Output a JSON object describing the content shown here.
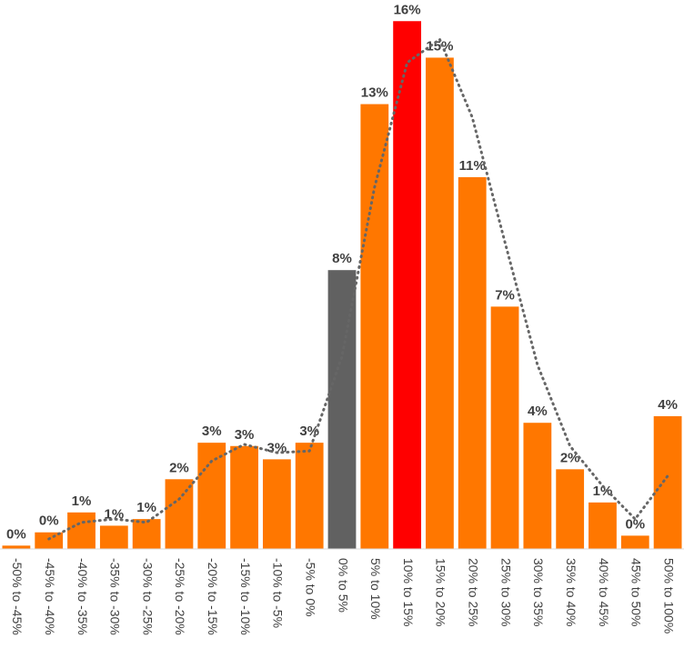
{
  "chart_data": {
    "type": "bar",
    "categories": [
      "-50% to -45%",
      "-45% to -40%",
      "-40% to -35%",
      "-35% to -30%",
      "-30% to -25%",
      "-25% to -20%",
      "-20% to -15%",
      "-15% to -10%",
      "-10% to -5%",
      "-5% to 0%",
      "0% to 5%",
      "5% to 10%",
      "10% to 15%",
      "15% to 20%",
      "20% to 25%",
      "25% to 30%",
      "30% to 35%",
      "35% to 40%",
      "40% to 45%",
      "45% to 50%",
      "50% to 100%"
    ],
    "values": [
      0.1,
      0.5,
      1.1,
      0.7,
      0.9,
      2.1,
      3.2,
      3.1,
      2.7,
      3.2,
      8.4,
      13.4,
      15.9,
      14.8,
      11.2,
      7.3,
      3.8,
      2.4,
      1.4,
      0.4,
      4.0
    ],
    "value_labels": [
      "0%",
      "0%",
      "1%",
      "1%",
      "1%",
      "2%",
      "3%",
      "3%",
      "3%",
      "3%",
      "8%",
      "13%",
      "16%",
      "15%",
      "11%",
      "7%",
      "4%",
      "2%",
      "1%",
      "0%",
      "4%"
    ],
    "colors": [
      "#ff7700",
      "#ff7700",
      "#ff7700",
      "#ff7700",
      "#ff7700",
      "#ff7700",
      "#ff7700",
      "#ff7700",
      "#ff7700",
      "#ff7700",
      "#616161",
      "#ff7700",
      "#ff0000",
      "#ff7700",
      "#ff7700",
      "#ff7700",
      "#ff7700",
      "#ff7700",
      "#ff7700",
      "#ff7700",
      "#ff7700"
    ],
    "trendline": {
      "color": "#666666",
      "values": [
        null,
        0.3,
        0.8,
        0.9,
        0.8,
        1.5,
        2.65,
        3.15,
        2.9,
        2.95,
        5.8,
        10.9,
        14.65,
        15.35,
        13.0,
        9.25,
        5.55,
        3.1,
        1.9,
        0.9,
        2.2
      ]
    },
    "ylim": [
      0,
      16.4
    ]
  }
}
